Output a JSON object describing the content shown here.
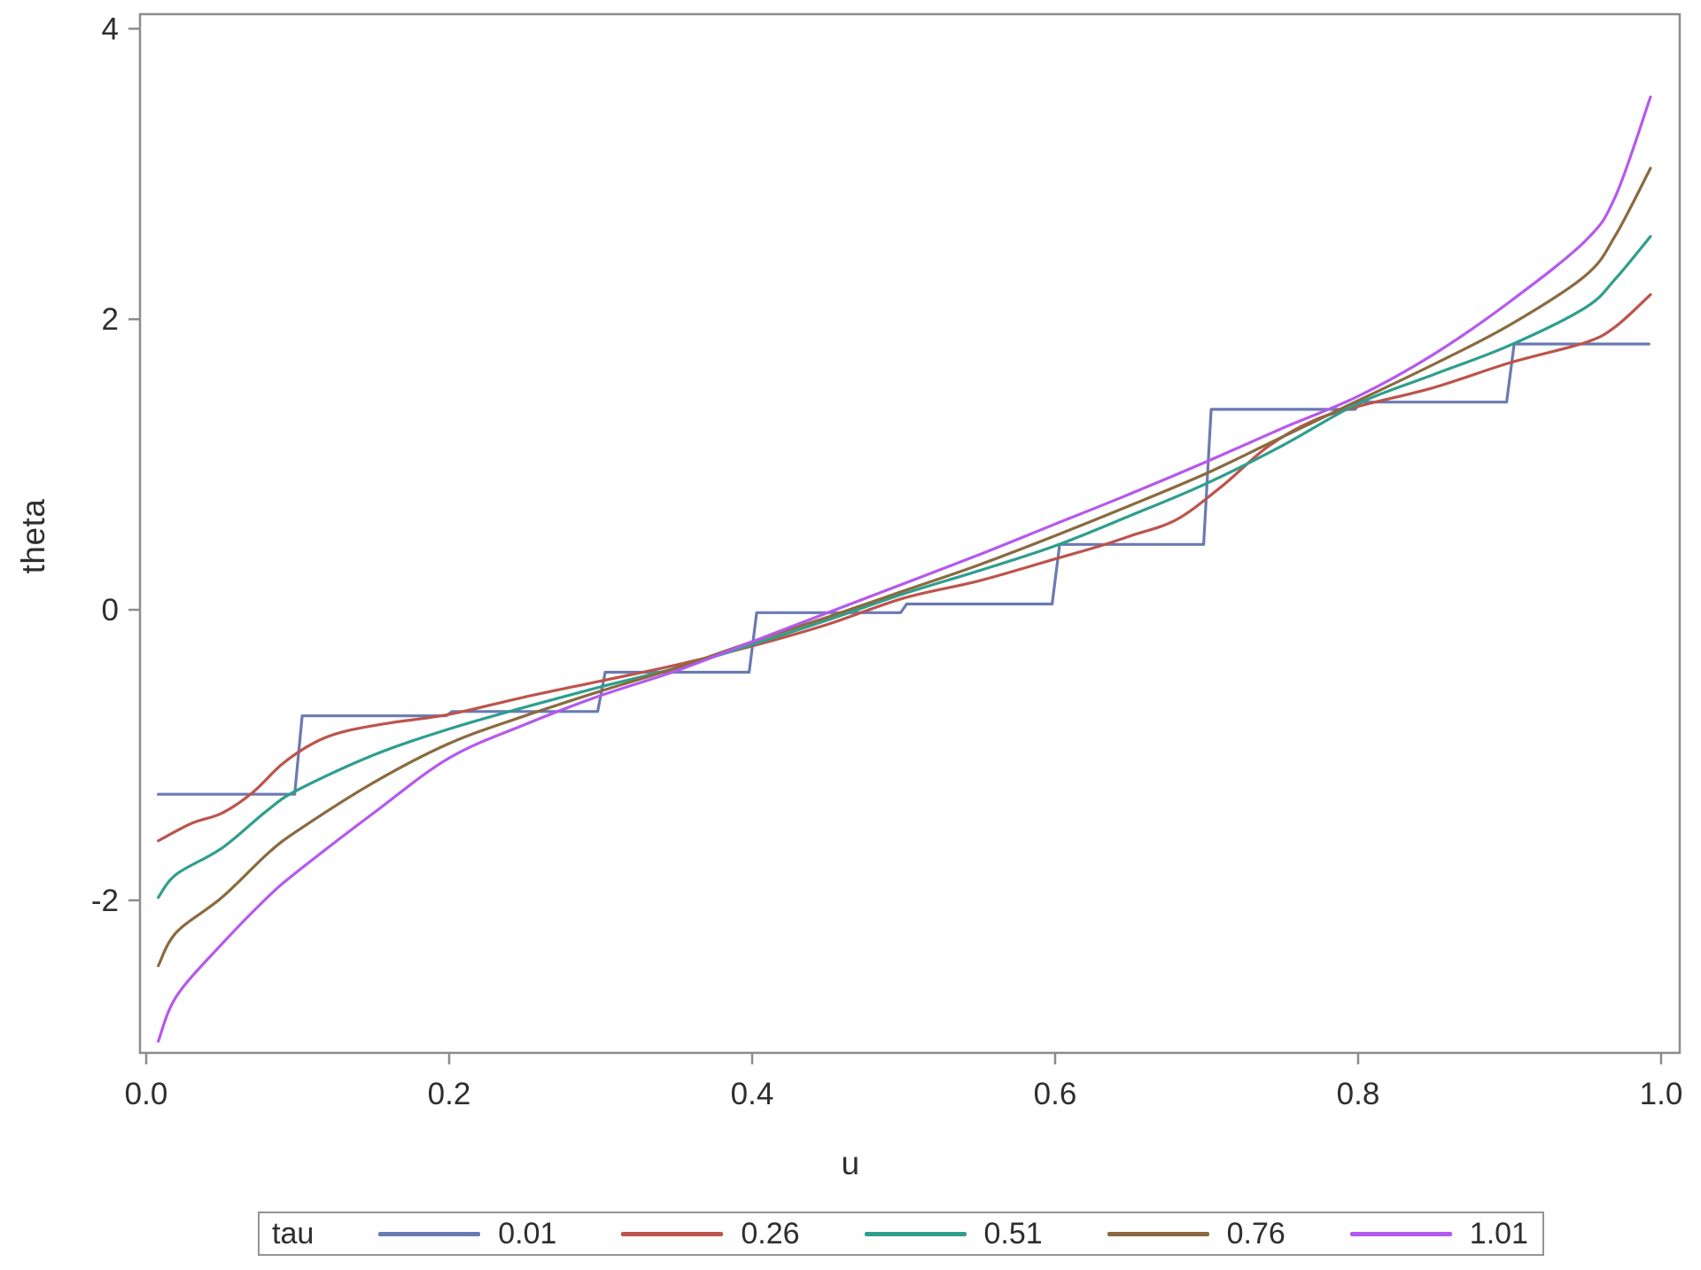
{
  "chart_data": {
    "type": "line",
    "title": "",
    "xlabel": "u",
    "ylabel": "theta",
    "x_ticks": [
      0.0,
      0.2,
      0.4,
      0.6,
      0.8,
      1.0
    ],
    "x_tick_labels": [
      "0.0",
      "0.2",
      "0.4",
      "0.6",
      "0.8",
      "1.0"
    ],
    "y_ticks": [
      4,
      2,
      0,
      -2
    ],
    "y_tick_labels": [
      "4",
      "2",
      "0",
      "-2"
    ],
    "xlim": [
      -0.0041,
      1.0123
    ],
    "ylim": [
      -3.05,
      4.1
    ],
    "grid": false,
    "legend_position": "bottom",
    "legend_title": "tau",
    "frame_color": "#8c8c8c",
    "tick_label_color": "#2e2e2e",
    "series": [
      {
        "name": "0.01",
        "color": "#6a7ab2",
        "step": true,
        "points": [
          [
            0.008,
            -1.27
          ],
          [
            0.098,
            -1.27
          ],
          [
            0.103,
            -0.73
          ],
          [
            0.198,
            -0.73
          ],
          [
            0.202,
            -0.7
          ],
          [
            0.298,
            -0.7
          ],
          [
            0.303,
            -0.43
          ],
          [
            0.398,
            -0.43
          ],
          [
            0.403,
            -0.02
          ],
          [
            0.498,
            -0.02
          ],
          [
            0.502,
            0.04
          ],
          [
            0.598,
            0.04
          ],
          [
            0.603,
            0.45
          ],
          [
            0.698,
            0.45
          ],
          [
            0.703,
            1.38
          ],
          [
            0.798,
            1.38
          ],
          [
            0.802,
            1.43
          ],
          [
            0.898,
            1.43
          ],
          [
            0.903,
            1.83
          ],
          [
            0.992,
            1.83
          ]
        ]
      },
      {
        "name": "0.26",
        "color": "#bc544b",
        "step": false,
        "points": [
          [
            0.008,
            -1.59
          ],
          [
            0.03,
            -1.47
          ],
          [
            0.05,
            -1.4
          ],
          [
            0.07,
            -1.26
          ],
          [
            0.09,
            -1.06
          ],
          [
            0.11,
            -0.92
          ],
          [
            0.13,
            -0.84
          ],
          [
            0.16,
            -0.78
          ],
          [
            0.2,
            -0.72
          ],
          [
            0.25,
            -0.6
          ],
          [
            0.3,
            -0.49
          ],
          [
            0.35,
            -0.38
          ],
          [
            0.4,
            -0.25
          ],
          [
            0.45,
            -0.1
          ],
          [
            0.5,
            0.08
          ],
          [
            0.55,
            0.2
          ],
          [
            0.6,
            0.35
          ],
          [
            0.63,
            0.44
          ],
          [
            0.65,
            0.51
          ],
          [
            0.68,
            0.62
          ],
          [
            0.71,
            0.85
          ],
          [
            0.74,
            1.12
          ],
          [
            0.77,
            1.3
          ],
          [
            0.8,
            1.4
          ],
          [
            0.85,
            1.53
          ],
          [
            0.9,
            1.7
          ],
          [
            0.95,
            1.84
          ],
          [
            0.97,
            1.95
          ],
          [
            0.993,
            2.17
          ]
        ]
      },
      {
        "name": "0.51",
        "color": "#2e9e8d",
        "step": false,
        "points": [
          [
            0.008,
            -1.98
          ],
          [
            0.02,
            -1.82
          ],
          [
            0.05,
            -1.64
          ],
          [
            0.08,
            -1.38
          ],
          [
            0.1,
            -1.24
          ],
          [
            0.15,
            -1.0
          ],
          [
            0.2,
            -0.82
          ],
          [
            0.25,
            -0.67
          ],
          [
            0.3,
            -0.53
          ],
          [
            0.35,
            -0.4
          ],
          [
            0.4,
            -0.24
          ],
          [
            0.45,
            -0.07
          ],
          [
            0.5,
            0.11
          ],
          [
            0.55,
            0.27
          ],
          [
            0.6,
            0.44
          ],
          [
            0.65,
            0.65
          ],
          [
            0.7,
            0.87
          ],
          [
            0.75,
            1.13
          ],
          [
            0.8,
            1.42
          ],
          [
            0.85,
            1.62
          ],
          [
            0.9,
            1.82
          ],
          [
            0.95,
            2.08
          ],
          [
            0.97,
            2.28
          ],
          [
            0.993,
            2.57
          ]
        ]
      },
      {
        "name": "0.76",
        "color": "#8a6a3e",
        "step": false,
        "points": [
          [
            0.008,
            -2.45
          ],
          [
            0.02,
            -2.22
          ],
          [
            0.05,
            -1.98
          ],
          [
            0.08,
            -1.68
          ],
          [
            0.1,
            -1.52
          ],
          [
            0.15,
            -1.19
          ],
          [
            0.2,
            -0.92
          ],
          [
            0.25,
            -0.73
          ],
          [
            0.3,
            -0.56
          ],
          [
            0.35,
            -0.4
          ],
          [
            0.4,
            -0.22
          ],
          [
            0.45,
            -0.05
          ],
          [
            0.5,
            0.13
          ],
          [
            0.55,
            0.31
          ],
          [
            0.6,
            0.51
          ],
          [
            0.65,
            0.72
          ],
          [
            0.7,
            0.94
          ],
          [
            0.75,
            1.19
          ],
          [
            0.8,
            1.44
          ],
          [
            0.85,
            1.69
          ],
          [
            0.9,
            1.96
          ],
          [
            0.95,
            2.3
          ],
          [
            0.97,
            2.58
          ],
          [
            0.993,
            3.04
          ]
        ]
      },
      {
        "name": "1.01",
        "color": "#b559ee",
        "step": false,
        "points": [
          [
            0.008,
            -2.97
          ],
          [
            0.02,
            -2.66
          ],
          [
            0.05,
            -2.3
          ],
          [
            0.08,
            -1.98
          ],
          [
            0.1,
            -1.8
          ],
          [
            0.15,
            -1.4
          ],
          [
            0.2,
            -1.02
          ],
          [
            0.25,
            -0.79
          ],
          [
            0.3,
            -0.59
          ],
          [
            0.35,
            -0.42
          ],
          [
            0.4,
            -0.22
          ],
          [
            0.45,
            -0.02
          ],
          [
            0.5,
            0.18
          ],
          [
            0.55,
            0.38
          ],
          [
            0.6,
            0.59
          ],
          [
            0.65,
            0.8
          ],
          [
            0.7,
            1.02
          ],
          [
            0.75,
            1.25
          ],
          [
            0.8,
            1.47
          ],
          [
            0.85,
            1.76
          ],
          [
            0.9,
            2.12
          ],
          [
            0.95,
            2.54
          ],
          [
            0.97,
            2.85
          ],
          [
            0.993,
            3.53
          ]
        ]
      }
    ]
  }
}
